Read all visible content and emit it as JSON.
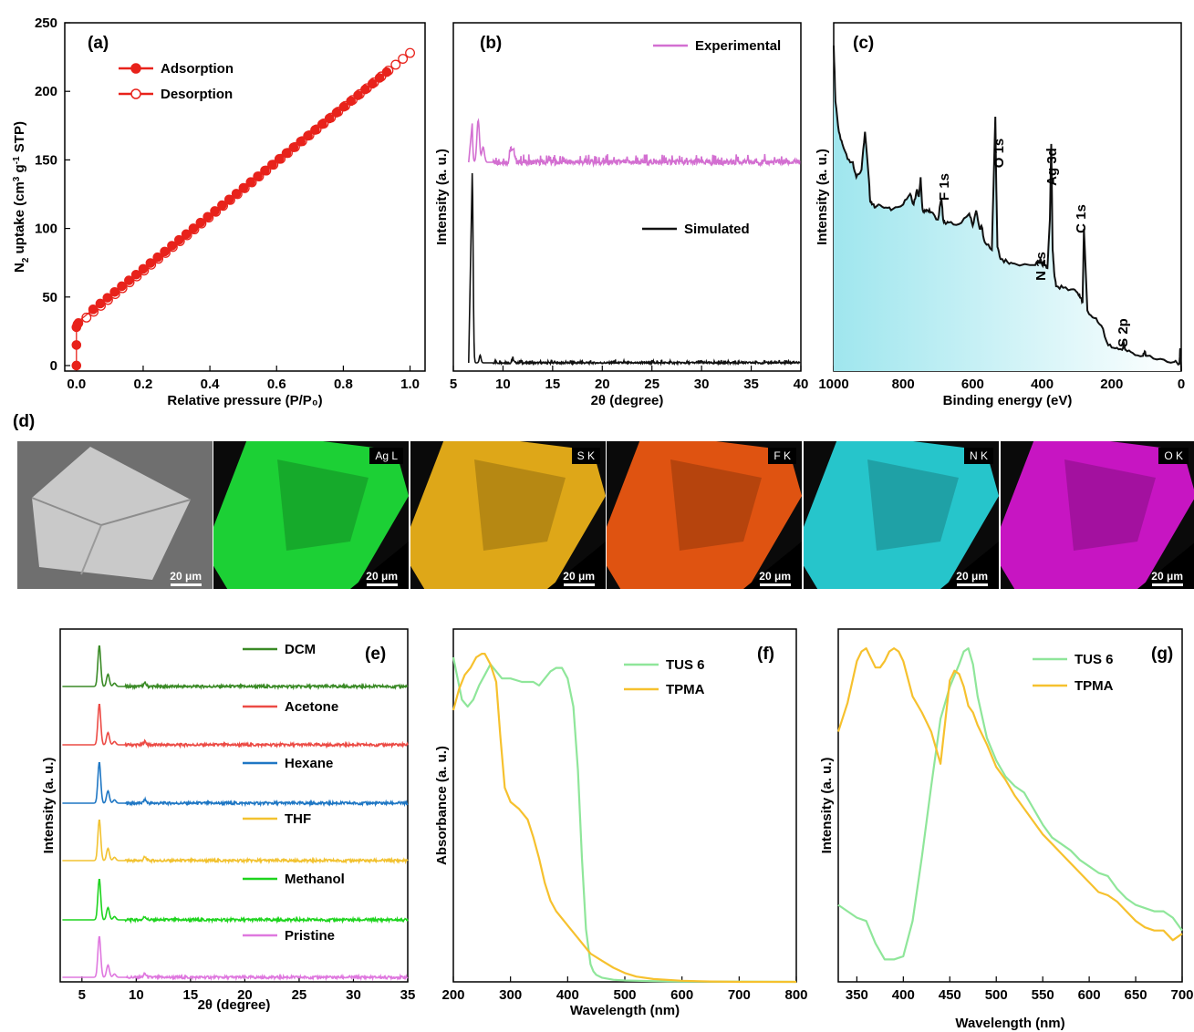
{
  "chart_data": [
    {
      "panel": "(a)",
      "type": "scatter",
      "xlabel": "Relative pressure (P/P₀)",
      "ylabel_main": "N",
      "ylabel_sub": "2",
      "ylabel_rest": " uptake (cm",
      "ylabel_sup1": "3",
      "ylabel_mid": " g",
      "ylabel_sup2": "-1",
      "ylabel_end": " STP)",
      "xlim": [
        0,
        1.0
      ],
      "ylim": [
        0,
        250
      ],
      "xticks": [
        "0.0",
        "0.2",
        "0.4",
        "0.6",
        "0.8",
        "1.0"
      ],
      "yticks": [
        "0",
        "50",
        "100",
        "150",
        "200",
        "250"
      ],
      "legend": [
        "Adsorption",
        "Desorption"
      ],
      "color": "#e8221b",
      "series": [
        {
          "name": "Adsorption",
          "filled": true,
          "x": [
            0.0,
            0.0,
            0.0,
            0.003,
            0.006
          ],
          "y": [
            0,
            15,
            28,
            30,
            31
          ]
        },
        {
          "name": "Desorption",
          "filled": false,
          "x": [
            0.03,
            1.0
          ],
          "y": [
            35,
            228
          ]
        }
      ],
      "adsorption_linear": {
        "x_start": 0.05,
        "x_end": 0.93,
        "y_start": 41,
        "y_end": 214
      }
    },
    {
      "panel": "(b)",
      "type": "line",
      "xlabel": "2θ (degree)",
      "ylabel": "Intensity (a. u.)",
      "xlim": [
        5,
        40
      ],
      "xticks": [
        "5",
        "10",
        "15",
        "20",
        "25",
        "30",
        "35",
        "40"
      ],
      "series": [
        {
          "name": "Experimental",
          "color": "#d36fd1",
          "peaks": [
            [
              6.7,
              100
            ],
            [
              7.5,
              33
            ],
            [
              8.0,
              12
            ],
            [
              10.8,
              10
            ],
            [
              11.1,
              8
            ]
          ]
        },
        {
          "name": "Simulated",
          "color": "#111111",
          "peaks": [
            [
              6.9,
              100
            ],
            [
              7.7,
              4
            ],
            [
              11.0,
              2
            ]
          ]
        }
      ]
    },
    {
      "panel": "(c)",
      "type": "line",
      "xlabel": "Binding energy (eV)",
      "ylabel": "Intensity (a. u.)",
      "xlim": [
        1000,
        0
      ],
      "xticks": [
        "1000",
        "800",
        "600",
        "400",
        "200",
        "0"
      ],
      "annotations": [
        "F 1s",
        "O 1s",
        "Ag 3d",
        "N 1s",
        "C 1s",
        "S 2p"
      ],
      "color": "#111111",
      "fill": "#bfeff4",
      "x": [
        1000,
        995,
        985,
        975,
        960,
        945,
        935,
        920,
        910,
        900,
        895,
        890,
        880,
        870,
        850,
        830,
        800,
        780,
        770,
        760,
        755,
        750,
        745,
        740,
        730,
        720,
        700,
        690,
        685,
        680,
        670,
        640,
        610,
        600,
        590,
        580,
        575,
        565,
        545,
        535,
        532,
        529,
        520,
        500,
        480,
        420,
        405,
        400,
        395,
        385,
        378,
        374,
        370,
        366,
        360,
        340,
        310,
        295,
        287,
        284,
        280,
        270,
        250,
        230,
        210,
        190,
        170,
        165,
        160,
        140,
        110,
        105,
        100,
        60,
        20,
        5,
        3,
        1,
        0
      ],
      "y": [
        215,
        178,
        158,
        150,
        140,
        138,
        128,
        133,
        158,
        130,
        112,
        110,
        108,
        110,
        108,
        107,
        110,
        117,
        110,
        120,
        115,
        128,
        108,
        105,
        106,
        105,
        100,
        114,
        100,
        98,
        98,
        97,
        104,
        96,
        106,
        94,
        96,
        85,
        80,
        168,
        120,
        82,
        74,
        72,
        71,
        70,
        74,
        70,
        72,
        68,
        100,
        150,
        80,
        66,
        56,
        55,
        54,
        50,
        48,
        45,
        94,
        40,
        35,
        30,
        17,
        15,
        14,
        18,
        14,
        12,
        10,
        13,
        10,
        8,
        6,
        5,
        15,
        6,
        0
      ]
    },
    {
      "panel": "(e)",
      "type": "line",
      "xlabel": "2θ (degree)",
      "ylabel": "Intensity (a. u.)",
      "xlim": [
        3,
        35
      ],
      "xticks": [
        "5",
        "10",
        "15",
        "20",
        "25",
        "30",
        "35"
      ],
      "series": [
        {
          "name": "DCM",
          "color": "#3a8a26"
        },
        {
          "name": "Acetone",
          "color": "#ec4b45"
        },
        {
          "name": "Hexane",
          "color": "#1f77c4"
        },
        {
          "name": "THF",
          "color": "#f2c230"
        },
        {
          "name": "Methanol",
          "color": "#1ed41e"
        },
        {
          "name": "Pristine",
          "color": "#df78df"
        }
      ],
      "peaks": [
        [
          6.6,
          100
        ],
        [
          7.4,
          30
        ],
        [
          8.0,
          8
        ],
        [
          10.8,
          8
        ]
      ]
    },
    {
      "panel": "(f)",
      "type": "line",
      "xlabel": "Wavelength (nm)",
      "ylabel": "Absorbance (a. u.)",
      "xlim": [
        200,
        800
      ],
      "xticks": [
        "200",
        "300",
        "400",
        "500",
        "600",
        "700",
        "800"
      ],
      "series": [
        {
          "name": "TUS 6",
          "color": "#8fe69a",
          "x": [
            200,
            205,
            215,
            225,
            235,
            245,
            255,
            265,
            275,
            285,
            300,
            320,
            340,
            350,
            360,
            370,
            380,
            390,
            400,
            410,
            418,
            425,
            432,
            440,
            445,
            450,
            460,
            480,
            500,
            550,
            600,
            800
          ],
          "y": [
            0.92,
            0.88,
            0.8,
            0.78,
            0.8,
            0.84,
            0.87,
            0.9,
            0.88,
            0.86,
            0.86,
            0.85,
            0.85,
            0.84,
            0.86,
            0.88,
            0.89,
            0.89,
            0.86,
            0.78,
            0.6,
            0.35,
            0.15,
            0.05,
            0.03,
            0.02,
            0.012,
            0.006,
            0.004,
            0.002,
            0.001,
            0.0
          ]
        },
        {
          "name": "TPMA",
          "color": "#f6c12e",
          "x": [
            200,
            210,
            220,
            230,
            240,
            250,
            255,
            265,
            275,
            282,
            290,
            300,
            315,
            330,
            340,
            350,
            360,
            370,
            380,
            400,
            420,
            440,
            460,
            480,
            500,
            520,
            550,
            600,
            650,
            700,
            800
          ],
          "y": [
            0.77,
            0.83,
            0.87,
            0.89,
            0.92,
            0.93,
            0.93,
            0.9,
            0.85,
            0.7,
            0.55,
            0.51,
            0.49,
            0.46,
            0.41,
            0.35,
            0.28,
            0.23,
            0.2,
            0.16,
            0.12,
            0.08,
            0.06,
            0.04,
            0.025,
            0.015,
            0.008,
            0.003,
            0.001,
            0.0,
            0.0
          ]
        }
      ]
    },
    {
      "panel": "(g)",
      "type": "line",
      "xlabel": "Wavelength (nm)",
      "ylabel": "Intensity (a. u.)",
      "xlim": [
        330,
        700
      ],
      "xticks": [
        "350",
        "400",
        "450",
        "500",
        "550",
        "600",
        "650",
        "700"
      ],
      "series": [
        {
          "name": "TUS 6",
          "color": "#8fe69a",
          "x": [
            330,
            340,
            350,
            360,
            370,
            380,
            390,
            400,
            410,
            420,
            430,
            440,
            450,
            460,
            465,
            470,
            475,
            480,
            490,
            500,
            510,
            520,
            530,
            540,
            550,
            560,
            570,
            580,
            590,
            600,
            610,
            620,
            630,
            640,
            650,
            660,
            670,
            680,
            690,
            700
          ],
          "y": [
            0.2,
            0.18,
            0.16,
            0.15,
            0.08,
            0.03,
            0.03,
            0.04,
            0.15,
            0.35,
            0.57,
            0.78,
            0.88,
            0.95,
            0.99,
            1.0,
            0.95,
            0.85,
            0.72,
            0.65,
            0.6,
            0.57,
            0.55,
            0.5,
            0.45,
            0.41,
            0.39,
            0.37,
            0.34,
            0.32,
            0.3,
            0.29,
            0.25,
            0.22,
            0.2,
            0.19,
            0.18,
            0.18,
            0.16,
            0.12
          ]
        },
        {
          "name": "TPMA",
          "color": "#f6c12e",
          "x": [
            330,
            340,
            350,
            355,
            360,
            365,
            370,
            375,
            380,
            385,
            390,
            395,
            400,
            410,
            420,
            430,
            440,
            450,
            455,
            460,
            465,
            470,
            475,
            480,
            490,
            500,
            510,
            520,
            530,
            540,
            550,
            560,
            570,
            580,
            590,
            600,
            610,
            620,
            630,
            640,
            650,
            660,
            670,
            680,
            690,
            700
          ],
          "y": [
            0.74,
            0.83,
            0.96,
            0.99,
            1.0,
            0.97,
            0.94,
            0.94,
            0.96,
            0.99,
            1.0,
            0.99,
            0.96,
            0.85,
            0.8,
            0.74,
            0.64,
            0.9,
            0.93,
            0.92,
            0.88,
            0.82,
            0.8,
            0.76,
            0.7,
            0.63,
            0.59,
            0.54,
            0.5,
            0.46,
            0.42,
            0.39,
            0.36,
            0.33,
            0.3,
            0.27,
            0.24,
            0.23,
            0.21,
            0.18,
            0.15,
            0.13,
            0.12,
            0.12,
            0.09,
            0.11
          ]
        }
      ]
    }
  ],
  "edx": {
    "panel": "(d)",
    "scale": "20 μm",
    "maps": [
      {
        "name": "SEM",
        "label": "",
        "color": "#c9c9c9"
      },
      {
        "name": "Ag",
        "label": "Ag L",
        "color": "#1ee23a"
      },
      {
        "name": "S",
        "label": "S K",
        "color": "#f1b51a"
      },
      {
        "name": "F",
        "label": "F K",
        "color": "#f25a12"
      },
      {
        "name": "N",
        "label": "N K",
        "color": "#29d6dc"
      },
      {
        "name": "O",
        "label": "O K",
        "color": "#d817d2"
      }
    ]
  }
}
